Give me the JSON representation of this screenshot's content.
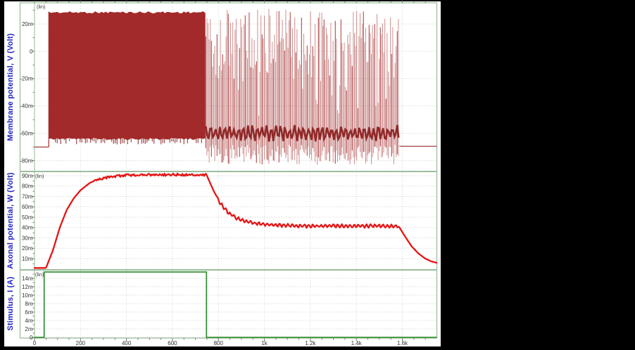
{
  "colors": {
    "background": "#000000",
    "chart_background": "#ffffff",
    "frame_green": "#a3c0a3",
    "separator_green": "#9cbc9c",
    "axis_green": "#96b796",
    "tick_green": "#5a7a5a",
    "grid_gray": "#cbcbcb",
    "grid_green": "#c4d6c4",
    "title_blue": "#2222c8",
    "tick_text": "#333333",
    "membrane_red": "#a32a2a",
    "membrane_band_dark": "#8b2222",
    "membrane_rest_line": "#a94f4f",
    "axonal_red": "#e61414",
    "stimulus_green": "#3a923a"
  },
  "panels": [
    {
      "title": "Membrane potential, V (Volt)",
      "scale_label": "(lin)",
      "yticks": [
        {
          "v": 0.02,
          "label": "20m"
        },
        {
          "v": 0,
          "label": "0"
        },
        {
          "v": -0.02,
          "label": "-20m"
        },
        {
          "v": -0.04,
          "label": "-40m"
        },
        {
          "v": -0.06,
          "label": "-60m"
        },
        {
          "v": -0.08,
          "label": "-80m"
        }
      ]
    },
    {
      "title": "Axonal potential, W (Volt)",
      "scale_label": "(lin)",
      "yticks": [
        {
          "v": 0.09,
          "label": "90m"
        },
        {
          "v": 0.08,
          "label": "80m"
        },
        {
          "v": 0.07,
          "label": "70m"
        },
        {
          "v": 0.06,
          "label": "60m"
        },
        {
          "v": 0.05,
          "label": "50m"
        },
        {
          "v": 0.04,
          "label": "40m"
        },
        {
          "v": 0.03,
          "label": "30m"
        },
        {
          "v": 0.02,
          "label": "20m"
        },
        {
          "v": 0.01,
          "label": "10m"
        }
      ]
    },
    {
      "title": "Stimulus, I (A)",
      "scale_label": "(lin)",
      "yticks": [
        {
          "v": 0.014,
          "label": "14m"
        },
        {
          "v": 0.012,
          "label": "12m"
        },
        {
          "v": 0.01,
          "label": "10m"
        },
        {
          "v": 0.008,
          "label": "8m"
        },
        {
          "v": 0.006,
          "label": "6m"
        },
        {
          "v": 0.004,
          "label": "4m"
        },
        {
          "v": 0.002,
          "label": "2m"
        },
        {
          "v": 0,
          "label": "0"
        }
      ]
    }
  ],
  "xaxis": {
    "max": 1750,
    "minor_step": 50,
    "ticks": [
      {
        "t": 0,
        "label": "0"
      },
      {
        "t": 200,
        "label": "200"
      },
      {
        "t": 400,
        "label": "400"
      },
      {
        "t": 600,
        "label": "600"
      },
      {
        "t": 800,
        "label": "800"
      },
      {
        "t": 1000,
        "label": "1k"
      },
      {
        "t": 1200,
        "label": "1.2k"
      },
      {
        "t": 1400,
        "label": "1.4k"
      },
      {
        "t": 1600,
        "label": "1.6k"
      }
    ]
  },
  "chart_data": [
    {
      "type": "line",
      "title": "Membrane potential, V (Volt)",
      "xlabel": "",
      "ylabel": "Membrane potential, V (Volt)",
      "xlim": [
        0,
        1750
      ],
      "ylim": [
        -0.087,
        0.034
      ],
      "scale": "lin",
      "grid": true,
      "series": [
        {
          "name": "V",
          "color": "#a32a2a",
          "segments": [
            {
              "type": "flat",
              "t": [
                0,
                62
              ],
              "v": -0.07
            },
            {
              "type": "dense_spiking",
              "t": [
                62,
                745
              ],
              "v_top": 0.029,
              "v_bottom": -0.0645
            },
            {
              "type": "burst_spiking",
              "t": [
                745,
                1587
              ],
              "v_top": 0.031,
              "v_bottom": -0.083,
              "band_center": -0.06,
              "band_halfwidth": 0.007
            },
            {
              "type": "flat",
              "t": [
                1587,
                1750
              ],
              "v": -0.0695
            }
          ]
        }
      ]
    },
    {
      "type": "line",
      "title": "Axonal potential, W (Volt)",
      "xlabel": "",
      "ylabel": "Axonal potential, W (Volt)",
      "xlim": [
        0,
        1750
      ],
      "ylim": [
        -0.001,
        0.0948
      ],
      "scale": "lin",
      "grid": true,
      "series": [
        {
          "name": "W",
          "color": "#e61414",
          "points": [
            [
              0,
              0.001
            ],
            [
              50,
              0.001
            ],
            [
              80,
              0.018
            ],
            [
              110,
              0.04
            ],
            [
              140,
              0.057
            ],
            [
              170,
              0.068
            ],
            [
              200,
              0.076
            ],
            [
              240,
              0.083
            ],
            [
              280,
              0.087
            ],
            [
              330,
              0.089
            ],
            [
              400,
              0.0905
            ],
            [
              500,
              0.091
            ],
            [
              600,
              0.091
            ],
            [
              700,
              0.091
            ],
            [
              748,
              0.091
            ],
            [
              780,
              0.075
            ],
            [
              810,
              0.063
            ],
            [
              840,
              0.055
            ],
            [
              880,
              0.049
            ],
            [
              920,
              0.046
            ],
            [
              960,
              0.044
            ],
            [
              1000,
              0.043
            ],
            [
              1100,
              0.042
            ],
            [
              1200,
              0.0415
            ],
            [
              1300,
              0.0415
            ],
            [
              1400,
              0.0415
            ],
            [
              1500,
              0.0415
            ],
            [
              1585,
              0.041
            ],
            [
              1610,
              0.032
            ],
            [
              1640,
              0.022
            ],
            [
              1670,
              0.015
            ],
            [
              1700,
              0.01
            ],
            [
              1725,
              0.0075
            ],
            [
              1750,
              0.006
            ]
          ],
          "plateau_noise": {
            "t": [
              260,
              748
            ],
            "amp": 0.0012
          },
          "ripple": {
            "t": [
              790,
              1585
            ],
            "amp": 0.0013,
            "period": 18
          }
        }
      ]
    },
    {
      "type": "line",
      "title": "Stimulus, I (A)",
      "xlabel": "",
      "ylabel": "Stimulus, I (A)",
      "xlim": [
        0,
        1750
      ],
      "ylim": [
        -0.0002,
        0.0162
      ],
      "scale": "lin",
      "grid": true,
      "series": [
        {
          "name": "I",
          "color": "#3a923a",
          "points": [
            [
              0,
              0
            ],
            [
              42,
              0
            ],
            [
              42,
              0.0155
            ],
            [
              748,
              0.0155
            ],
            [
              748,
              0
            ],
            [
              1750,
              0
            ]
          ]
        }
      ]
    }
  ]
}
